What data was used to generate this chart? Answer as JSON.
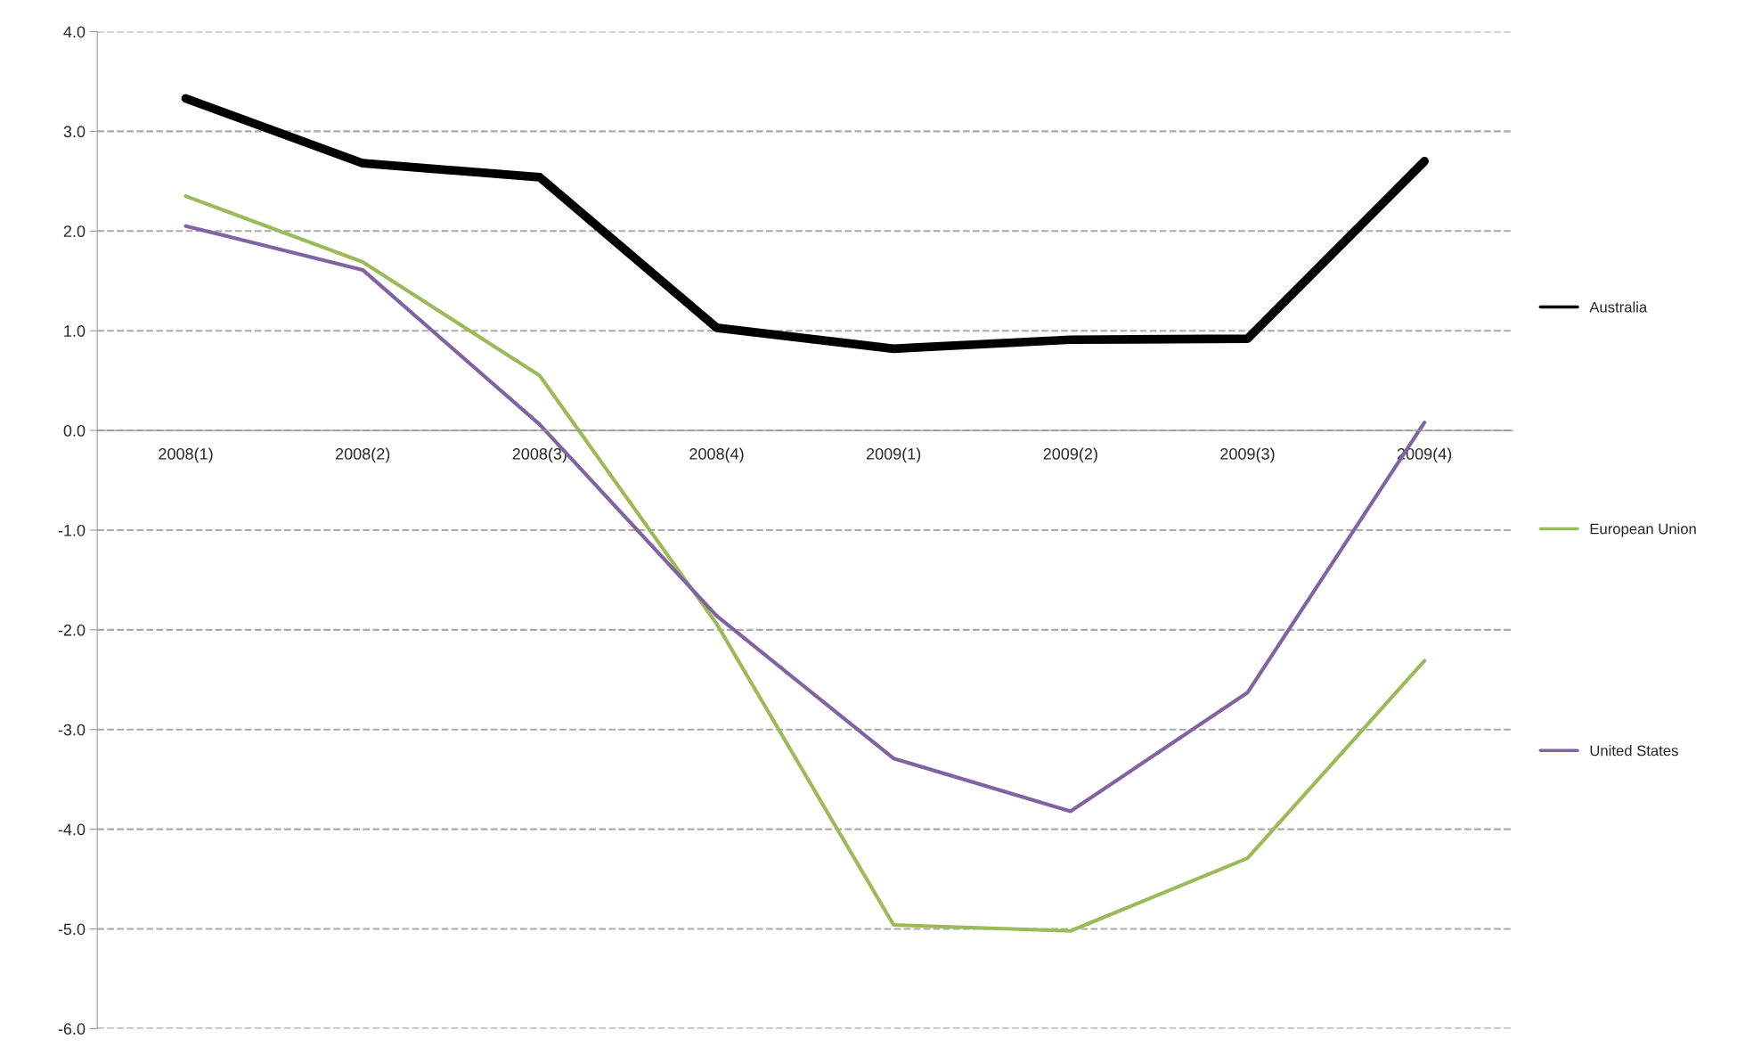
{
  "chart_data": {
    "type": "line",
    "categories": [
      "2008(1)",
      "2008(2)",
      "2008(3)",
      "2008(4)",
      "2009(1)",
      "2009(2)",
      "2009(3)",
      "2009(4)"
    ],
    "series": [
      {
        "name": "Australia",
        "color": "#000000",
        "values": [
          3.33,
          2.68,
          2.54,
          1.03,
          0.82,
          0.91,
          0.92,
          2.7
        ]
      },
      {
        "name": "European Union",
        "color": "#9bbb59",
        "values": [
          2.35,
          1.69,
          0.55,
          -1.94,
          -4.96,
          -5.02,
          -4.29,
          -2.31
        ]
      },
      {
        "name": "United States",
        "color": "#8064a2",
        "values": [
          2.05,
          1.61,
          0.06,
          -1.86,
          -3.29,
          -3.82,
          -2.63,
          0.08
        ]
      }
    ],
    "ylim": [
      -6,
      4
    ],
    "yticks": [
      {
        "value": -6,
        "label": "-6.0"
      },
      {
        "value": -5,
        "label": "-5.0"
      },
      {
        "value": -4,
        "label": "-4.0"
      },
      {
        "value": -3,
        "label": "-3.0"
      },
      {
        "value": -2,
        "label": "-2.0"
      },
      {
        "value": -1,
        "label": "-1.0"
      },
      {
        "value": 0,
        "label": "0.0"
      },
      {
        "value": 1,
        "label": "1.0"
      },
      {
        "value": 2,
        "label": "2.0"
      },
      {
        "value": 3,
        "label": "3.0"
      },
      {
        "value": 4,
        "label": "4.0"
      }
    ],
    "grid": "y",
    "legend": "right",
    "marker": "none",
    "line_style": "solid"
  }
}
